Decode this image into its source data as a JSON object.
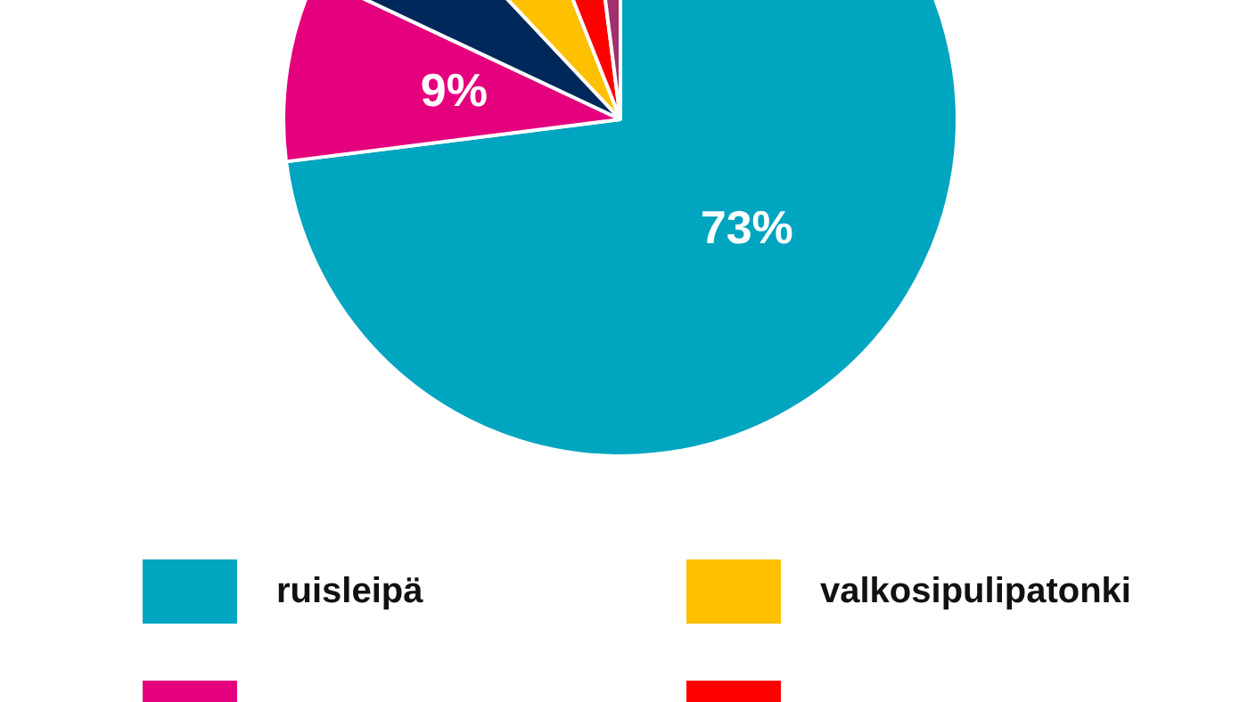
{
  "chart_data": {
    "type": "pie",
    "categories": [
      "ruisleipä",
      null,
      null,
      "valkosipulipatonki",
      null,
      null
    ],
    "values": [
      73,
      9,
      6,
      6,
      4,
      2
    ],
    "colors": [
      "#00a5c0",
      "#e5007d",
      "#00285a",
      "#ffc000",
      "#ff0000",
      "#a0306e"
    ],
    "value_labels": [
      "73%",
      "9%",
      null,
      null,
      null,
      null
    ],
    "legend": "bottom"
  }
}
